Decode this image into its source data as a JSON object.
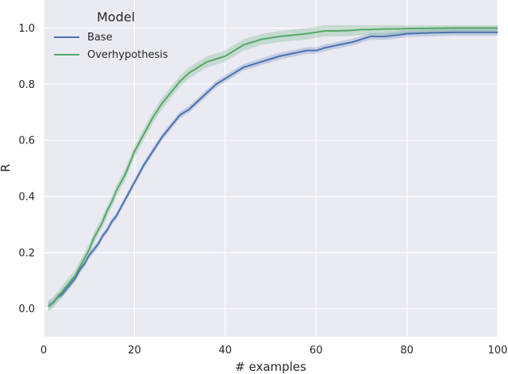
{
  "chart_data": {
    "type": "line",
    "xlabel": "# examples",
    "ylabel": "R",
    "xlim": [
      0,
      100
    ],
    "ylim": [
      -0.1,
      1.1
    ],
    "xticks": [
      "0",
      "20",
      "40",
      "60",
      "80",
      "100"
    ],
    "yticks": [
      "0.0",
      "0.2",
      "0.4",
      "0.6",
      "0.8",
      "1.0"
    ],
    "grid": true,
    "legend": {
      "title": "Model",
      "placement": "top-left"
    },
    "x": [
      1,
      2,
      3,
      4,
      5,
      6,
      7,
      8,
      9,
      10,
      11,
      12,
      13,
      14,
      15,
      16,
      17,
      18,
      19,
      20,
      22,
      24,
      26,
      28,
      30,
      32,
      34,
      36,
      38,
      40,
      42,
      44,
      46,
      48,
      50,
      52,
      55,
      58,
      60,
      62,
      65,
      68,
      70,
      72,
      75,
      78,
      80,
      85,
      90,
      95,
      100
    ],
    "series": [
      {
        "name": "Base",
        "color": "#4c72b0",
        "values": [
          0.01,
          0.02,
          0.04,
          0.05,
          0.07,
          0.09,
          0.11,
          0.14,
          0.16,
          0.19,
          0.21,
          0.23,
          0.26,
          0.28,
          0.31,
          0.33,
          0.36,
          0.39,
          0.42,
          0.45,
          0.51,
          0.56,
          0.61,
          0.65,
          0.69,
          0.71,
          0.74,
          0.77,
          0.8,
          0.82,
          0.84,
          0.86,
          0.87,
          0.88,
          0.89,
          0.9,
          0.91,
          0.92,
          0.92,
          0.93,
          0.94,
          0.95,
          0.96,
          0.97,
          0.97,
          0.975,
          0.98,
          0.983,
          0.985,
          0.985,
          0.985
        ],
        "band": 0.012
      },
      {
        "name": "Overhypothesis",
        "color": "#55a868",
        "values": [
          0.01,
          0.02,
          0.04,
          0.06,
          0.08,
          0.1,
          0.12,
          0.15,
          0.18,
          0.21,
          0.25,
          0.28,
          0.31,
          0.35,
          0.38,
          0.42,
          0.45,
          0.48,
          0.52,
          0.56,
          0.62,
          0.68,
          0.73,
          0.77,
          0.81,
          0.84,
          0.86,
          0.88,
          0.89,
          0.9,
          0.92,
          0.94,
          0.95,
          0.96,
          0.965,
          0.97,
          0.975,
          0.98,
          0.985,
          0.99,
          0.99,
          0.992,
          0.995,
          0.995,
          0.997,
          0.997,
          0.998,
          0.999,
          1.0,
          1.0,
          1.0
        ],
        "band": 0.02
      }
    ]
  }
}
